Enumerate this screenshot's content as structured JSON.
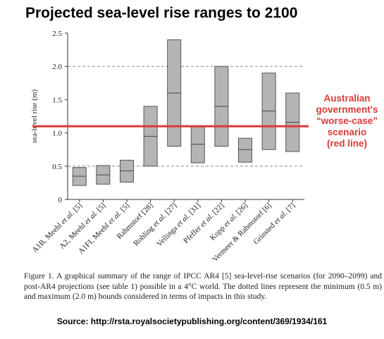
{
  "title": "Projected sea-level rise ranges to 2100",
  "annotation": {
    "lines": [
      "Australian",
      "government's",
      "“worse-case”",
      "scenario",
      "(red line)"
    ],
    "color": "#d93a37"
  },
  "caption": "Figure 1. A graphical summary of the range of IPCC AR4 [5] sea-level-rise scenarios (for 2090–2099) and post-AR4 projections (see table 1) possible in a 4°C world. The dotted lines represent the minimum (0.5 m) and maximum (2.0 m) bounds considered in terms of impacts in this study.",
  "source": "Source: http://rsta.royalsocietypublishing.org/content/369/1934/161",
  "chart_data": {
    "type": "range-bar",
    "ylabel": "sea-level rise (m)",
    "ylim": [
      0,
      2.5
    ],
    "yticks": [
      "0",
      "0.5",
      "1.0",
      "1.5",
      "2.0",
      "2.5"
    ],
    "categories": [
      "A1B, Meehl et al. [5]",
      "A2, Meehl et al. [5]",
      "A1FI, Meehl et al. [5]",
      "Rahmstorf [28]",
      "Rohling et al. [27]",
      "Vellinga et al. [31]",
      "Pfeffer et al. [22]",
      "Kopp et al. [26]",
      "Vermeer & Rahmstorf [6]",
      "Grinsted et al. [7]"
    ],
    "ranges": [
      {
        "low": 0.21,
        "mid": 0.35,
        "high": 0.48
      },
      {
        "low": 0.23,
        "mid": 0.37,
        "high": 0.51
      },
      {
        "low": 0.26,
        "mid": 0.43,
        "high": 0.59
      },
      {
        "low": 0.5,
        "mid": 0.95,
        "high": 1.4
      },
      {
        "low": 0.8,
        "mid": 1.6,
        "high": 2.4
      },
      {
        "low": 0.55,
        "mid": 0.83,
        "high": 1.1
      },
      {
        "low": 0.8,
        "mid": 1.4,
        "high": 2.0
      },
      {
        "low": 0.56,
        "mid": 0.75,
        "high": 0.92
      },
      {
        "low": 0.75,
        "mid": 1.33,
        "high": 1.9
      },
      {
        "low": 0.72,
        "mid": 1.16,
        "high": 1.6
      }
    ],
    "reference_lines": [
      {
        "y": 0.5,
        "style": "dashed",
        "color": "#888888"
      },
      {
        "y": 2.0,
        "style": "dashed",
        "color": "#888888"
      },
      {
        "y": 1.1,
        "style": "solid",
        "color": "#d93a37"
      }
    ],
    "bar_color": "#b4b4b4"
  }
}
